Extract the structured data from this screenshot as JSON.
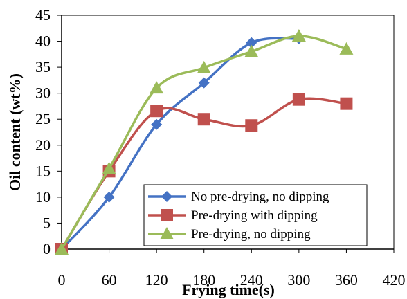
{
  "chart_data": {
    "type": "line",
    "xlabel": "Frying time(s)",
    "ylabel": "Oil content (wt%)",
    "xlim": [
      0,
      420
    ],
    "ylim": [
      0,
      45
    ],
    "xticks": [
      "0",
      "60",
      "120",
      "180",
      "240",
      "300",
      "360",
      "420"
    ],
    "yticks": [
      "0",
      "5",
      "10",
      "15",
      "20",
      "25",
      "30",
      "35",
      "40",
      "45"
    ],
    "grid": false,
    "legend_position": "bottom-right",
    "series": [
      {
        "name": "No pre-drying, no dipping",
        "marker": "diamond",
        "color": "#4472C4",
        "x": [
          0,
          60,
          120,
          180,
          240,
          300
        ],
        "y": [
          0,
          10,
          24,
          32,
          39.7,
          40.5
        ]
      },
      {
        "name": "Pre-drying with dipping",
        "marker": "square",
        "color": "#C0504D",
        "x": [
          0,
          60,
          120,
          180,
          240,
          300,
          360
        ],
        "y": [
          0,
          15,
          26.6,
          25,
          23.8,
          28.8,
          28
        ]
      },
      {
        "name": "Pre-drying, no dipping",
        "marker": "triangle",
        "color": "#9BBB59",
        "x": [
          0,
          60,
          120,
          180,
          240,
          300,
          360
        ],
        "y": [
          0,
          15.5,
          31,
          34.9,
          38,
          41,
          38.5
        ]
      }
    ]
  }
}
